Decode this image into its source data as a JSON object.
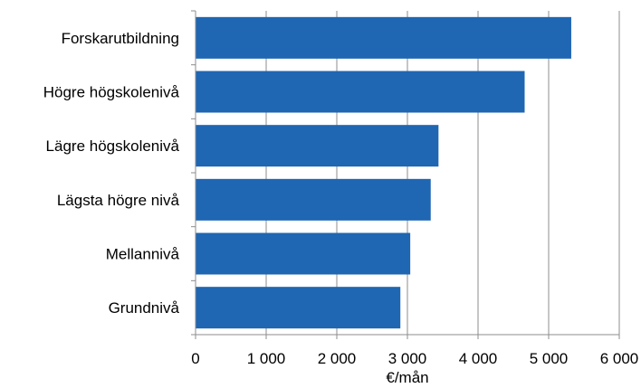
{
  "chart_data": {
    "type": "bar",
    "orientation": "horizontal",
    "categories": [
      "Forskarutbildning",
      "Högre högskolenivå",
      "Lägre högskolenivå",
      "Lägsta högre nivå",
      "Mellannivå",
      "Grundnivå"
    ],
    "series": [
      {
        "values": [
          5320,
          4660,
          3440,
          3330,
          3040,
          2900
        ],
        "color": "#1f66b3"
      }
    ],
    "xlabel": "€/mån",
    "ylabel": "",
    "xlim": [
      0,
      6000
    ],
    "x_ticks": [
      0,
      1000,
      2000,
      3000,
      4000,
      5000,
      6000
    ],
    "x_tick_labels": [
      "0",
      "1 000",
      "2 000",
      "3 000",
      "4 000",
      "5 000",
      "6 000"
    ],
    "grid": "vertical",
    "grid_color": "#8c8c8c",
    "legend": "none"
  }
}
